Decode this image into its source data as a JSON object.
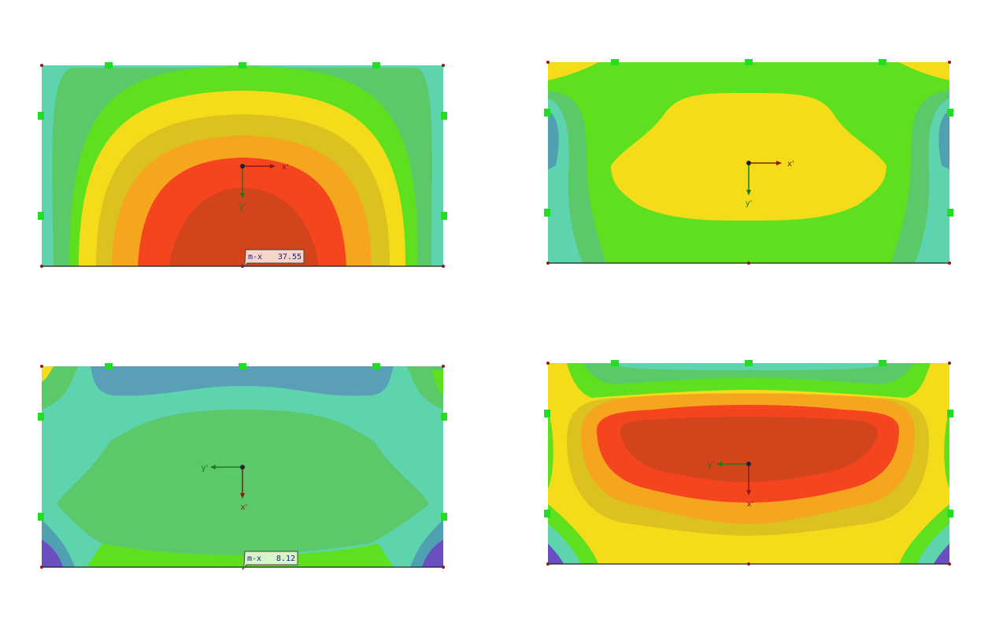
{
  "panels": [
    {
      "axes": {
        "x": "x'",
        "y": "y'"
      },
      "label": {
        "name": "m-x",
        "value": "37.55"
      }
    },
    {
      "axes": {
        "x": "x'",
        "y": "y'"
      }
    },
    {
      "axes": {
        "x": "x'",
        "y": "y'"
      },
      "label": {
        "name": "m-x",
        "value": "8.12"
      }
    },
    {
      "axes": {
        "x": "x'",
        "y": "y'"
      }
    }
  ]
}
